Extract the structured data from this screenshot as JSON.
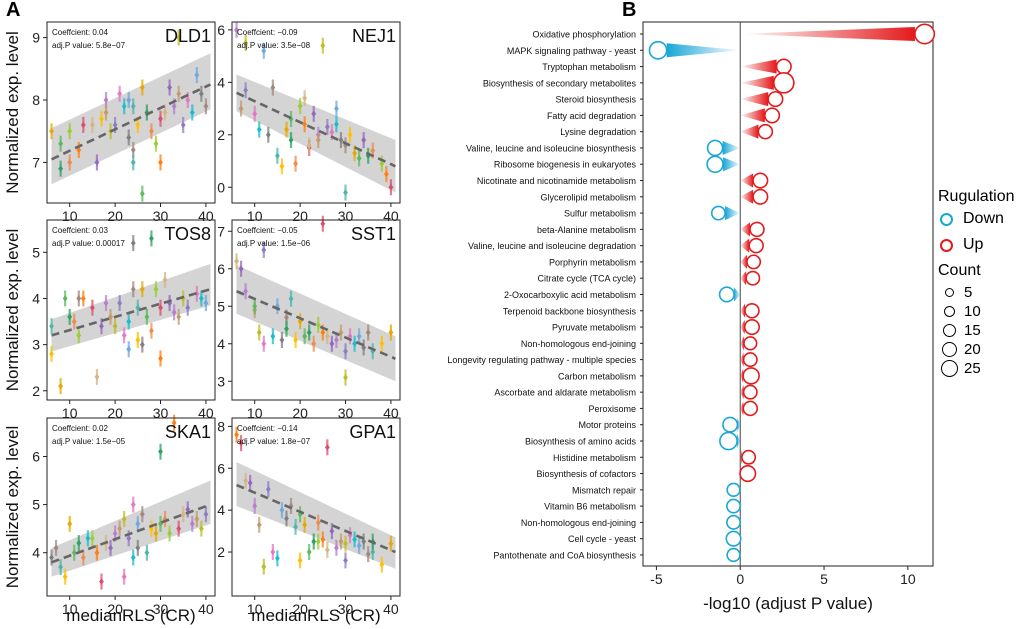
{
  "panel_labels": {
    "a": "A",
    "b": "B"
  },
  "legend": {
    "reg_title": "Rugulation",
    "down_label": "Down",
    "up_label": "Up",
    "count_title": "Count",
    "counts": [
      "5",
      "10",
      "15",
      "20",
      "25"
    ],
    "down_color": "#1aa6d6",
    "up_color": "#e41a1c"
  },
  "chart_data": [
    {
      "type": "scatter",
      "title": "DLD1",
      "coefficient": "Coeffcient: 0.04",
      "pvalue": "adj.P value: 5.8e−07",
      "ylabel": "Normalized exp. level",
      "xlabel": "",
      "xlim": [
        5,
        42
      ],
      "ylim": [
        6.35,
        9.25
      ],
      "xticks": [
        "10",
        "20",
        "30",
        "40"
      ],
      "yticks": [
        "7",
        "8",
        "9"
      ],
      "fit": {
        "x": [
          6,
          41
        ],
        "y": [
          7.05,
          8.25
        ]
      },
      "band": {
        "lo": [
          6.65,
          7.85
        ],
        "hi": [
          7.55,
          8.75
        ]
      },
      "points": [
        [
          6,
          7.5
        ],
        [
          8,
          7.3
        ],
        [
          8,
          6.9
        ],
        [
          10,
          7.0
        ],
        [
          10,
          7.5
        ],
        [
          12,
          7.2
        ],
        [
          13,
          7.6
        ],
        [
          15,
          7.6
        ],
        [
          16,
          7.0
        ],
        [
          18,
          8.0
        ],
        [
          18,
          7.8
        ],
        [
          19,
          7.5
        ],
        [
          20,
          7.6
        ],
        [
          21,
          8.1
        ],
        [
          22,
          7.9
        ],
        [
          23,
          8.0
        ],
        [
          23,
          7.4
        ],
        [
          24,
          7.2
        ],
        [
          24,
          7.9
        ],
        [
          25,
          7.6
        ],
        [
          26,
          8.2
        ],
        [
          26,
          6.5
        ],
        [
          27,
          7.8
        ],
        [
          28,
          7.5
        ],
        [
          29,
          7.3
        ],
        [
          30,
          7.0
        ],
        [
          30,
          7.7
        ],
        [
          31,
          7.8
        ],
        [
          32,
          8.2
        ],
        [
          33,
          7.9
        ],
        [
          34,
          8.1
        ],
        [
          34,
          9.0
        ],
        [
          35,
          7.6
        ],
        [
          36,
          8.0
        ],
        [
          37,
          7.8
        ],
        [
          38,
          8.4
        ],
        [
          39,
          8.1
        ],
        [
          40,
          7.9
        ],
        [
          24,
          7.0
        ],
        [
          17,
          7.7
        ]
      ]
    },
    {
      "type": "scatter",
      "title": "NEJ1",
      "coefficient": "Coeffcient: −0.09",
      "pvalue": "adj.P value: 3.5e−08",
      "ylabel": "",
      "xlabel": "",
      "xlim": [
        5,
        42
      ],
      "ylim": [
        -0.6,
        6.3
      ],
      "xticks": [
        "10",
        "20",
        "30",
        "40"
      ],
      "yticks": [
        "0",
        "2",
        "4",
        "6"
      ],
      "fit": {
        "x": [
          6,
          41
        ],
        "y": [
          3.6,
          0.8
        ]
      },
      "band": {
        "lo": [
          2.9,
          -0.2
        ],
        "hi": [
          4.3,
          1.8
        ]
      },
      "points": [
        [
          6,
          6.0
        ],
        [
          7,
          3.0
        ],
        [
          8,
          5.5
        ],
        [
          8,
          3.7
        ],
        [
          10,
          2.8
        ],
        [
          11,
          2.2
        ],
        [
          12,
          5.2
        ],
        [
          13,
          2.0
        ],
        [
          14,
          3.8
        ],
        [
          15,
          1.2
        ],
        [
          16,
          0.8
        ],
        [
          17,
          2.2
        ],
        [
          18,
          2.6
        ],
        [
          18,
          1.8
        ],
        [
          19,
          0.9
        ],
        [
          20,
          3.1
        ],
        [
          21,
          2.4
        ],
        [
          22,
          1.5
        ],
        [
          22,
          1.6
        ],
        [
          23,
          2.8
        ],
        [
          24,
          2.0
        ],
        [
          24,
          1.8
        ],
        [
          25,
          5.4
        ],
        [
          26,
          2.3
        ],
        [
          27,
          2.1
        ],
        [
          28,
          2.4
        ],
        [
          28,
          3.0
        ],
        [
          29,
          1.8
        ],
        [
          30,
          1.6
        ],
        [
          30,
          -0.2
        ],
        [
          31,
          2.0
        ],
        [
          32,
          1.3
        ],
        [
          33,
          1.1
        ],
        [
          35,
          1.2
        ],
        [
          36,
          1.4
        ],
        [
          38,
          0.9
        ],
        [
          39,
          0.5
        ],
        [
          40,
          0.0
        ],
        [
          21,
          3.4
        ],
        [
          34,
          1.8
        ]
      ]
    },
    {
      "type": "scatter",
      "title": "TOS8",
      "coefficient": "Coeffcient: 0.03",
      "pvalue": "adj.P value: 0.00017",
      "ylabel": "Normalized exp. level",
      "xlabel": "",
      "xlim": [
        5,
        42
      ],
      "ylim": [
        1.8,
        5.7
      ],
      "xticks": [
        "10",
        "20",
        "30",
        "40"
      ],
      "yticks": [
        "2",
        "3",
        "4",
        "5"
      ],
      "fit": {
        "x": [
          6,
          41
        ],
        "y": [
          3.2,
          4.2
        ]
      },
      "band": {
        "lo": [
          2.85,
          3.85
        ],
        "hi": [
          3.55,
          4.75
        ]
      },
      "points": [
        [
          6,
          3.4
        ],
        [
          6,
          2.8
        ],
        [
          8,
          2.1
        ],
        [
          9,
          4.0
        ],
        [
          10,
          3.6
        ],
        [
          11,
          3.5
        ],
        [
          12,
          3.2
        ],
        [
          13,
          4.0
        ],
        [
          15,
          3.8
        ],
        [
          16,
          2.3
        ],
        [
          17,
          3.4
        ],
        [
          18,
          3.9
        ],
        [
          19,
          3.6
        ],
        [
          20,
          3.4
        ],
        [
          21,
          3.9
        ],
        [
          22,
          3.2
        ],
        [
          23,
          3.5
        ],
        [
          23,
          2.9
        ],
        [
          24,
          5.2
        ],
        [
          24,
          4.2
        ],
        [
          25,
          3.8
        ],
        [
          25,
          3.1
        ],
        [
          26,
          4.2
        ],
        [
          27,
          3.6
        ],
        [
          28,
          5.3
        ],
        [
          28,
          3.3
        ],
        [
          29,
          4.2
        ],
        [
          30,
          2.7
        ],
        [
          30,
          3.8
        ],
        [
          31,
          4.4
        ],
        [
          32,
          3.9
        ],
        [
          33,
          3.7
        ],
        [
          34,
          3.6
        ],
        [
          35,
          4.0
        ],
        [
          36,
          3.8
        ],
        [
          38,
          4.1
        ],
        [
          39,
          4.0
        ],
        [
          40,
          3.9
        ],
        [
          26,
          3.0
        ],
        [
          12,
          4.0
        ]
      ]
    },
    {
      "type": "scatter",
      "title": "SST1",
      "coefficient": "Coeffcient: −0.05",
      "pvalue": "adj.P value: 1.5e−06",
      "ylabel": "",
      "xlabel": "",
      "xlim": [
        5,
        42
      ],
      "ylim": [
        2.5,
        7.3
      ],
      "xticks": [
        "10",
        "20",
        "30",
        "40"
      ],
      "yticks": [
        "3",
        "4",
        "5",
        "6",
        "7"
      ],
      "fit": {
        "x": [
          6,
          41
        ],
        "y": [
          5.4,
          3.6
        ]
      },
      "band": {
        "lo": [
          4.8,
          3.0
        ],
        "hi": [
          6.1,
          4.2
        ]
      },
      "points": [
        [
          6,
          6.2
        ],
        [
          7,
          6.0
        ],
        [
          8,
          5.4
        ],
        [
          10,
          4.9
        ],
        [
          11,
          4.3
        ],
        [
          12,
          6.5
        ],
        [
          12,
          4.0
        ],
        [
          14,
          4.2
        ],
        [
          15,
          5.0
        ],
        [
          16,
          4.1
        ],
        [
          17,
          4.7
        ],
        [
          18,
          5.2
        ],
        [
          19,
          4.1
        ],
        [
          20,
          4.6
        ],
        [
          21,
          4.2
        ],
        [
          22,
          4.3
        ],
        [
          23,
          4.0
        ],
        [
          24,
          4.5
        ],
        [
          25,
          4.3
        ],
        [
          25,
          7.2
        ],
        [
          26,
          4.2
        ],
        [
          27,
          4.0
        ],
        [
          28,
          4.1
        ],
        [
          29,
          4.3
        ],
        [
          30,
          3.1
        ],
        [
          30,
          3.8
        ],
        [
          31,
          4.2
        ],
        [
          32,
          4.0
        ],
        [
          33,
          4.2
        ],
        [
          34,
          3.9
        ],
        [
          35,
          4.3
        ],
        [
          36,
          3.8
        ],
        [
          38,
          4.0
        ],
        [
          40,
          4.3
        ],
        [
          10,
          5.0
        ],
        [
          17,
          4.4
        ]
      ]
    },
    {
      "type": "scatter",
      "title": "SKA1",
      "coefficient": "Coeffcient: 0.02",
      "pvalue": "adj.P value: 1.5e−05",
      "ylabel": "Normalized exp. level",
      "xlabel": "medianRLS (CR)",
      "xlim": [
        5,
        42
      ],
      "ylim": [
        3.1,
        6.8
      ],
      "xticks": [
        "10",
        "20",
        "30",
        "40"
      ],
      "yticks": [
        "4",
        "5",
        "6"
      ],
      "fit": {
        "x": [
          6,
          41
        ],
        "y": [
          3.8,
          5.0
        ]
      },
      "band": {
        "lo": [
          3.5,
          4.6
        ],
        "hi": [
          4.1,
          5.5
        ]
      },
      "points": [
        [
          6,
          3.9
        ],
        [
          7,
          4.1
        ],
        [
          8,
          3.7
        ],
        [
          9,
          3.5
        ],
        [
          10,
          4.6
        ],
        [
          11,
          4.0
        ],
        [
          12,
          4.2
        ],
        [
          13,
          3.9
        ],
        [
          15,
          4.3
        ],
        [
          16,
          4.0
        ],
        [
          17,
          3.4
        ],
        [
          18,
          4.2
        ],
        [
          19,
          4.1
        ],
        [
          20,
          4.4
        ],
        [
          21,
          4.5
        ],
        [
          22,
          4.7
        ],
        [
          23,
          4.3
        ],
        [
          24,
          5.0
        ],
        [
          24,
          3.9
        ],
        [
          25,
          4.6
        ],
        [
          25,
          4.1
        ],
        [
          26,
          4.8
        ],
        [
          27,
          4.0
        ],
        [
          28,
          4.5
        ],
        [
          29,
          4.4
        ],
        [
          30,
          4.6
        ],
        [
          30,
          6.1
        ],
        [
          31,
          4.7
        ],
        [
          32,
          4.4
        ],
        [
          33,
          6.7
        ],
        [
          34,
          4.5
        ],
        [
          35,
          4.8
        ],
        [
          36,
          4.9
        ],
        [
          37,
          4.6
        ],
        [
          38,
          4.7
        ],
        [
          39,
          4.5
        ],
        [
          40,
          4.8
        ],
        [
          22,
          3.5
        ],
        [
          14,
          4.3
        ]
      ]
    },
    {
      "type": "scatter",
      "title": "GPA1",
      "coefficient": "Coeffcient: −0.14",
      "pvalue": "adj.P value: 1.8e−07",
      "ylabel": "",
      "xlabel": "medianRLS (CR)",
      "xlim": [
        5,
        42
      ],
      "ylim": [
        -0.1,
        8.4
      ],
      "xticks": [
        "10",
        "20",
        "30",
        "40"
      ],
      "yticks": [
        "2",
        "4",
        "6",
        "8"
      ],
      "fit": {
        "x": [
          6,
          41
        ],
        "y": [
          5.2,
          2.0
        ]
      },
      "band": {
        "lo": [
          4.2,
          1.2
        ],
        "hi": [
          6.3,
          2.7
        ]
      },
      "points": [
        [
          6,
          7.6
        ],
        [
          7,
          7.2
        ],
        [
          8,
          5.4
        ],
        [
          9,
          5.3
        ],
        [
          10,
          4.2
        ],
        [
          11,
          3.3
        ],
        [
          12,
          1.3
        ],
        [
          13,
          5.0
        ],
        [
          14,
          2.0
        ],
        [
          15,
          1.7
        ],
        [
          16,
          4.0
        ],
        [
          17,
          3.6
        ],
        [
          18,
          4.2
        ],
        [
          19,
          3.2
        ],
        [
          20,
          1.6
        ],
        [
          21,
          3.3
        ],
        [
          22,
          2.0
        ],
        [
          23,
          2.5
        ],
        [
          24,
          3.4
        ],
        [
          24,
          2.5
        ],
        [
          25,
          2.6
        ],
        [
          26,
          7.0
        ],
        [
          26,
          2.1
        ],
        [
          27,
          3.0
        ],
        [
          28,
          2.2
        ],
        [
          29,
          2.5
        ],
        [
          30,
          2.4
        ],
        [
          30,
          1.6
        ],
        [
          31,
          2.8
        ],
        [
          32,
          2.6
        ],
        [
          33,
          2.3
        ],
        [
          34,
          2.5
        ],
        [
          35,
          1.9
        ],
        [
          36,
          2.0
        ],
        [
          38,
          1.4
        ],
        [
          40,
          2.4
        ],
        [
          20,
          3.8
        ],
        [
          36,
          2.5
        ]
      ]
    },
    {
      "type": "lollipop",
      "xlabel": "-log10 (adjust P value)",
      "xlim": [
        -5.8,
        11.5
      ],
      "xticks": [
        -5,
        0,
        5,
        10
      ],
      "categories": [
        "Oxidative phosphorylation",
        "MAPK signaling pathway - yeast",
        "Tryptophan metabolism",
        "Biosynthesis of secondary metabolites",
        "Steroid biosynthesis",
        "Fatty acid degradation",
        "Lysine degradation",
        "Valine, leucine and isoleucine biosynthesis",
        "Ribosome biogenesis in eukaryotes",
        "Nicotinate and nicotinamide metabolism",
        "Glycerolipid metabolism",
        "Sulfur metabolism",
        "beta-Alanine metabolism",
        "Valine, leucine and isoleucine degradation",
        "Porphyrin metabolism",
        "Citrate cycle (TCA cycle)",
        "2-Oxocarboxylic acid metabolism",
        "Terpenoid backbone biosynthesis",
        "Pyruvate metabolism",
        "Non-homologous end-joining",
        "Longevity regulating pathway - multiple species",
        "Carbon metabolism",
        "Ascorbate and aldarate metabolism",
        "Peroxisome",
        "Motor proteins",
        "Biosynthesis of amino acids",
        "Histidine metabolism",
        "Biosynthesis of cofactors",
        "Mismatch repair",
        "Vitamin B6 metabolism",
        "Non-homologous end-joining",
        "Cell cycle - yeast",
        "Pantothenate and CoA biosynthesis"
      ],
      "values": [
        11.0,
        -4.9,
        2.6,
        2.6,
        2.1,
        1.9,
        1.5,
        -1.5,
        -1.5,
        1.2,
        1.2,
        -1.3,
        1.0,
        0.95,
        0.8,
        0.75,
        -0.8,
        0.7,
        0.7,
        0.6,
        0.6,
        0.65,
        0.6,
        0.6,
        -0.6,
        -0.7,
        0.5,
        0.45,
        -0.4,
        -0.4,
        -0.4,
        -0.4,
        -0.4
      ],
      "counts": [
        20,
        14,
        8,
        22,
        8,
        8,
        7,
        9,
        11,
        8,
        8,
        6,
        7,
        7,
        6,
        6,
        8,
        7,
        8,
        5,
        6,
        11,
        6,
        7,
        8,
        14,
        6,
        10,
        5,
        6,
        6,
        8,
        5
      ],
      "regulation": [
        "Up",
        "Down",
        "Up",
        "Up",
        "Up",
        "Up",
        "Up",
        "Down",
        "Down",
        "Up",
        "Up",
        "Down",
        "Up",
        "Up",
        "Up",
        "Up",
        "Down",
        "Up",
        "Up",
        "Up",
        "Up",
        "Up",
        "Up",
        "Up",
        "Down",
        "Down",
        "Up",
        "Up",
        "Down",
        "Down",
        "Down",
        "Down",
        "Down"
      ]
    }
  ]
}
